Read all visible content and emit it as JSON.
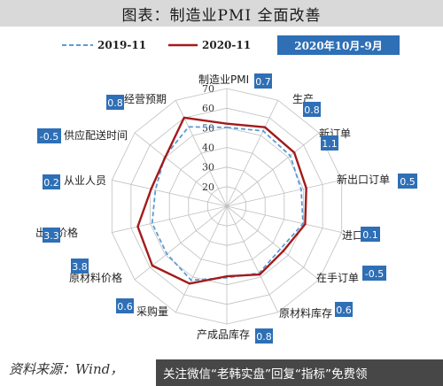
{
  "header": {
    "title": "图表：制造业PMI 全面改善"
  },
  "footer": {
    "source": "资料来源：Wind，",
    "overlay_text": "关注微信“老韩实盘”回复“指标”免费领"
  },
  "colors": {
    "series_2019": "#5b9bd5",
    "series_2020": "#a31a1a",
    "badge": "#2e6fb6",
    "grid": "#bfbfbf"
  },
  "chart_data": {
    "type": "radar",
    "title": "",
    "period_badge": "2020年10月-9月",
    "r_axis": {
      "ticks": [
        20,
        30,
        40,
        50,
        60,
        70
      ],
      "min": 10,
      "max": 70
    },
    "grid": true,
    "legend_position": "top",
    "categories": [
      "制造业PMI",
      "生产",
      "新订单",
      "新出口订单",
      "进口",
      "在手订单",
      "原材料库存",
      "产成品库存",
      "采购量",
      "原材料价格",
      "出厂价格",
      "从业人员",
      "供应配送时间",
      "经营预期"
    ],
    "changes": [
      "0.7",
      "0.8",
      "1.1",
      "0.5",
      "0.1",
      "-0.5",
      "0.6",
      "0.8",
      "0.6",
      "3.8",
      "3.3",
      "0.2",
      "-0.5",
      "0.8"
    ],
    "series": [
      {
        "name": "2019-11",
        "style": "dashed",
        "values": [
          50.2,
          52.6,
          51.3,
          48.8,
          49.8,
          44.9,
          47.8,
          46.4,
          51.8,
          49.0,
          49.0,
          47.3,
          50.5,
          54.9
        ]
      },
      {
        "name": "2020-11",
        "style": "solid",
        "values": [
          52.1,
          54.7,
          53.9,
          51.5,
          50.9,
          46.7,
          48.6,
          45.7,
          53.7,
          58.5,
          56.5,
          49.5,
          50.1,
          60.1
        ]
      }
    ]
  }
}
